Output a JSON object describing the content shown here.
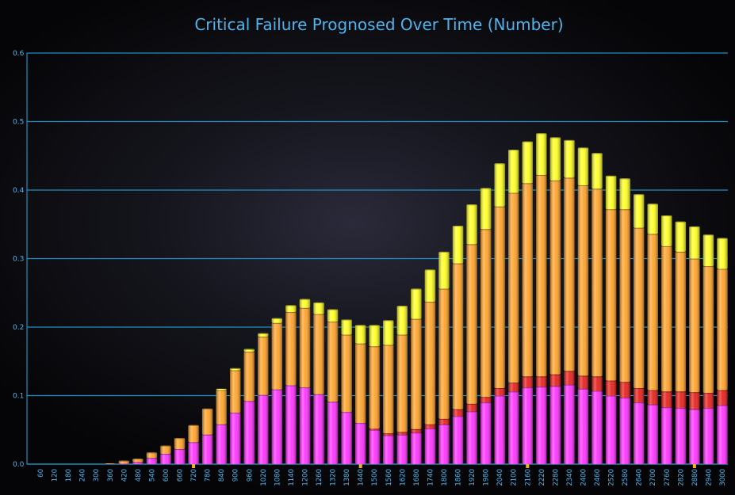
{
  "chart_data": {
    "type": "bar",
    "stacked": true,
    "title": "Critical Failure Prognosed Over Time (Number)",
    "xlabel": "",
    "ylabel": "",
    "ylim": [
      0,
      0.6
    ],
    "yticks": [
      "0.0",
      "0.1",
      "0.2",
      "0.3",
      "0.4",
      "0.5",
      "0.6"
    ],
    "grid": true,
    "categories": [
      "60",
      "120",
      "180",
      "240",
      "300",
      "360",
      "420",
      "480",
      "540",
      "600",
      "660",
      "720",
      "780",
      "840",
      "900",
      "960",
      "1020",
      "1080",
      "1140",
      "1200",
      "1260",
      "1320",
      "1380",
      "1440",
      "1500",
      "1560",
      "1620",
      "1680",
      "1740",
      "1800",
      "1860",
      "1920",
      "1980",
      "2040",
      "2100",
      "2160",
      "2220",
      "2280",
      "2340",
      "2400",
      "2460",
      "2520",
      "2580",
      "2640",
      "2700",
      "2760",
      "2820",
      "2880",
      "2940",
      "3000"
    ],
    "highlighted_ticks": [
      "720",
      "1440",
      "2160",
      "2880"
    ],
    "series": [
      {
        "color": "#ff33ff",
        "values": [
          0,
          0,
          0,
          0,
          0,
          0,
          0.001,
          0.003,
          0.009,
          0.015,
          0.022,
          0.032,
          0.043,
          0.058,
          0.075,
          0.092,
          0.101,
          0.109,
          0.115,
          0.112,
          0.102,
          0.091,
          0.076,
          0.06,
          0.05,
          0.042,
          0.043,
          0.046,
          0.052,
          0.058,
          0.07,
          0.077,
          0.09,
          0.1,
          0.106,
          0.112,
          0.113,
          0.114,
          0.116,
          0.11,
          0.107,
          0.1,
          0.097,
          0.09,
          0.087,
          0.083,
          0.082,
          0.08,
          0.082,
          0.086
        ]
      },
      {
        "color": "#e8201c",
        "values": [
          0,
          0,
          0,
          0,
          0,
          0,
          0,
          0,
          0,
          0,
          0,
          0,
          0,
          0,
          0,
          0,
          0,
          0,
          0,
          0,
          0,
          0,
          0,
          0,
          0.002,
          0.003,
          0.004,
          0.005,
          0.006,
          0.008,
          0.01,
          0.011,
          0.008,
          0.011,
          0.013,
          0.016,
          0.015,
          0.017,
          0.02,
          0.019,
          0.021,
          0.022,
          0.023,
          0.021,
          0.021,
          0.023,
          0.024,
          0.025,
          0.022,
          0.022
        ]
      },
      {
        "color": "#ffa32a",
        "values": [
          0,
          0,
          0,
          0,
          0,
          0.001,
          0.004,
          0.005,
          0.008,
          0.012,
          0.016,
          0.025,
          0.038,
          0.05,
          0.062,
          0.072,
          0.085,
          0.097,
          0.107,
          0.116,
          0.117,
          0.117,
          0.113,
          0.116,
          0.12,
          0.129,
          0.142,
          0.161,
          0.179,
          0.19,
          0.213,
          0.233,
          0.245,
          0.265,
          0.277,
          0.282,
          0.294,
          0.283,
          0.282,
          0.278,
          0.274,
          0.25,
          0.252,
          0.234,
          0.228,
          0.212,
          0.204,
          0.195,
          0.185,
          0.177
        ]
      },
      {
        "color": "#ffff22",
        "values": [
          0,
          0,
          0,
          0,
          0,
          0,
          0,
          0,
          0,
          0,
          0,
          0,
          0,
          0.002,
          0.003,
          0.004,
          0.005,
          0.007,
          0.01,
          0.013,
          0.017,
          0.018,
          0.022,
          0.027,
          0.031,
          0.036,
          0.042,
          0.044,
          0.047,
          0.054,
          0.055,
          0.058,
          0.06,
          0.063,
          0.063,
          0.061,
          0.061,
          0.063,
          0.055,
          0.055,
          0.052,
          0.049,
          0.045,
          0.049,
          0.044,
          0.045,
          0.044,
          0.047,
          0.046,
          0.045
        ]
      }
    ]
  }
}
